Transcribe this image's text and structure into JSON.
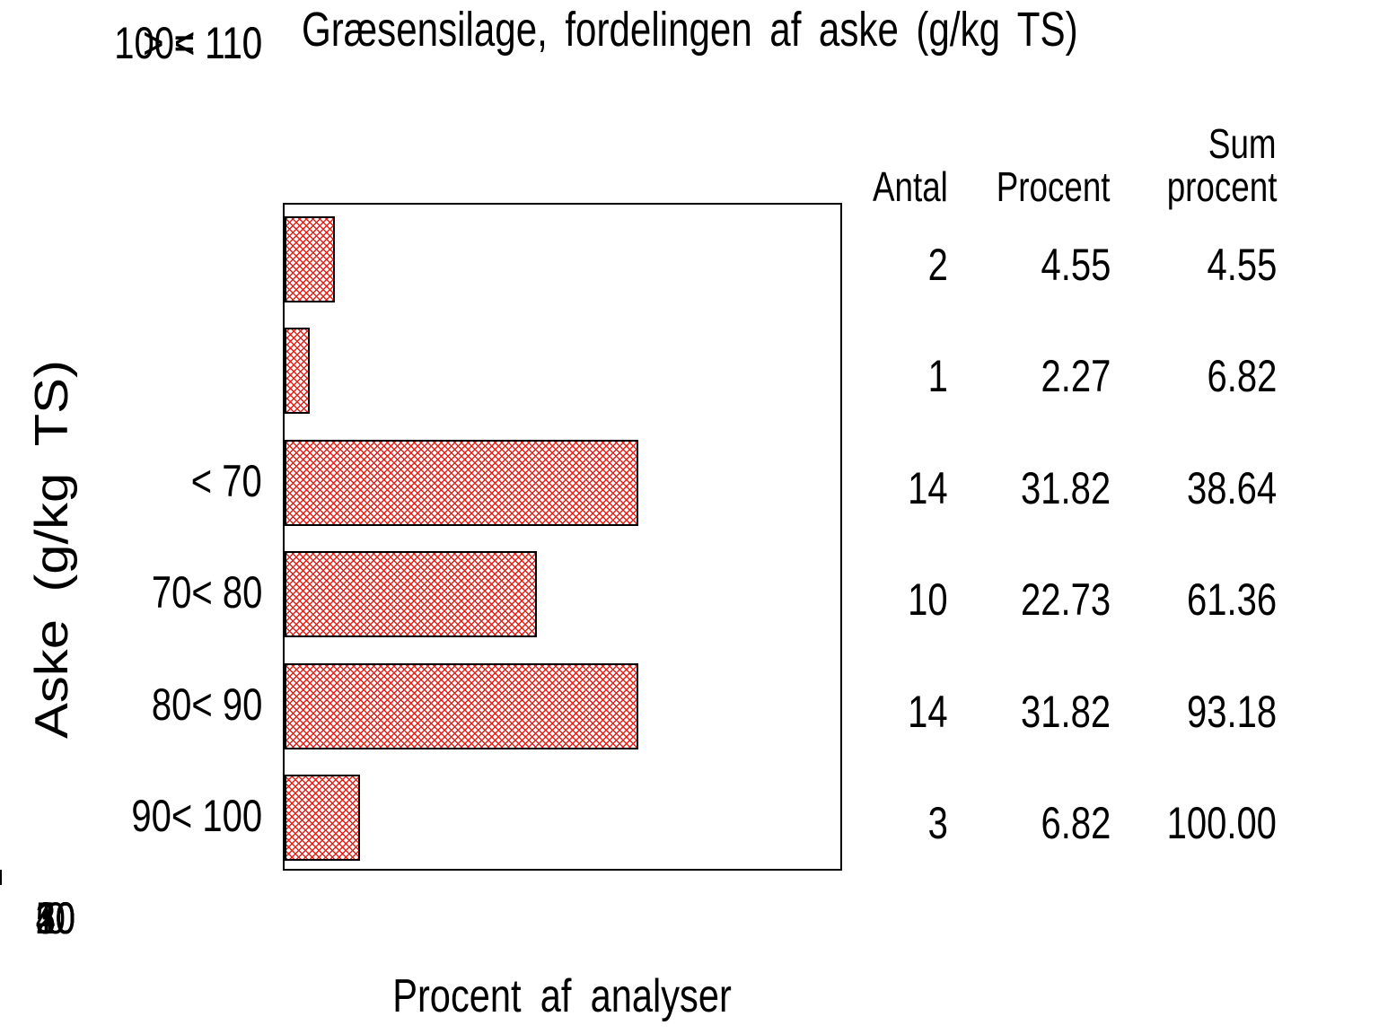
{
  "chart_data": {
    "type": "bar",
    "orientation": "horizontal",
    "title": "Græsensilage, fordelingen af aske (g/kg TS)",
    "categories": [
      "< 70",
      "70< 80",
      "80< 90",
      "90< 100",
      "100< 110",
      "> = 110"
    ],
    "values": [
      4.55,
      2.27,
      31.82,
      22.73,
      31.82,
      6.82
    ],
    "xlabel": "Procent af analyser",
    "ylabel": "Aske (g/kg TS)",
    "xlim": [
      0,
      50
    ],
    "xticks": [
      "0",
      "10",
      "20",
      "30",
      "40",
      "50"
    ],
    "grid": false,
    "bar_fill": "crosshatch",
    "bar_color": "#e2231c",
    "bar_border_color": "#000000",
    "frame_color": "#000000",
    "text_color": "#000000",
    "background_color": "#ffffff"
  },
  "table": {
    "col_headers": {
      "antal": "Antal",
      "procent": "Procent",
      "sum1": "Sum",
      "sum2": "procent"
    },
    "rows": [
      {
        "antal": "2",
        "procent": "4.55",
        "sum": "4.55"
      },
      {
        "antal": "1",
        "procent": "2.27",
        "sum": "6.82"
      },
      {
        "antal": "14",
        "procent": "31.82",
        "sum": "38.64"
      },
      {
        "antal": "10",
        "procent": "22.73",
        "sum": "61.36"
      },
      {
        "antal": "14",
        "procent": "31.82",
        "sum": "93.18"
      },
      {
        "antal": "3",
        "procent": "6.82",
        "sum": "100.00"
      }
    ]
  }
}
